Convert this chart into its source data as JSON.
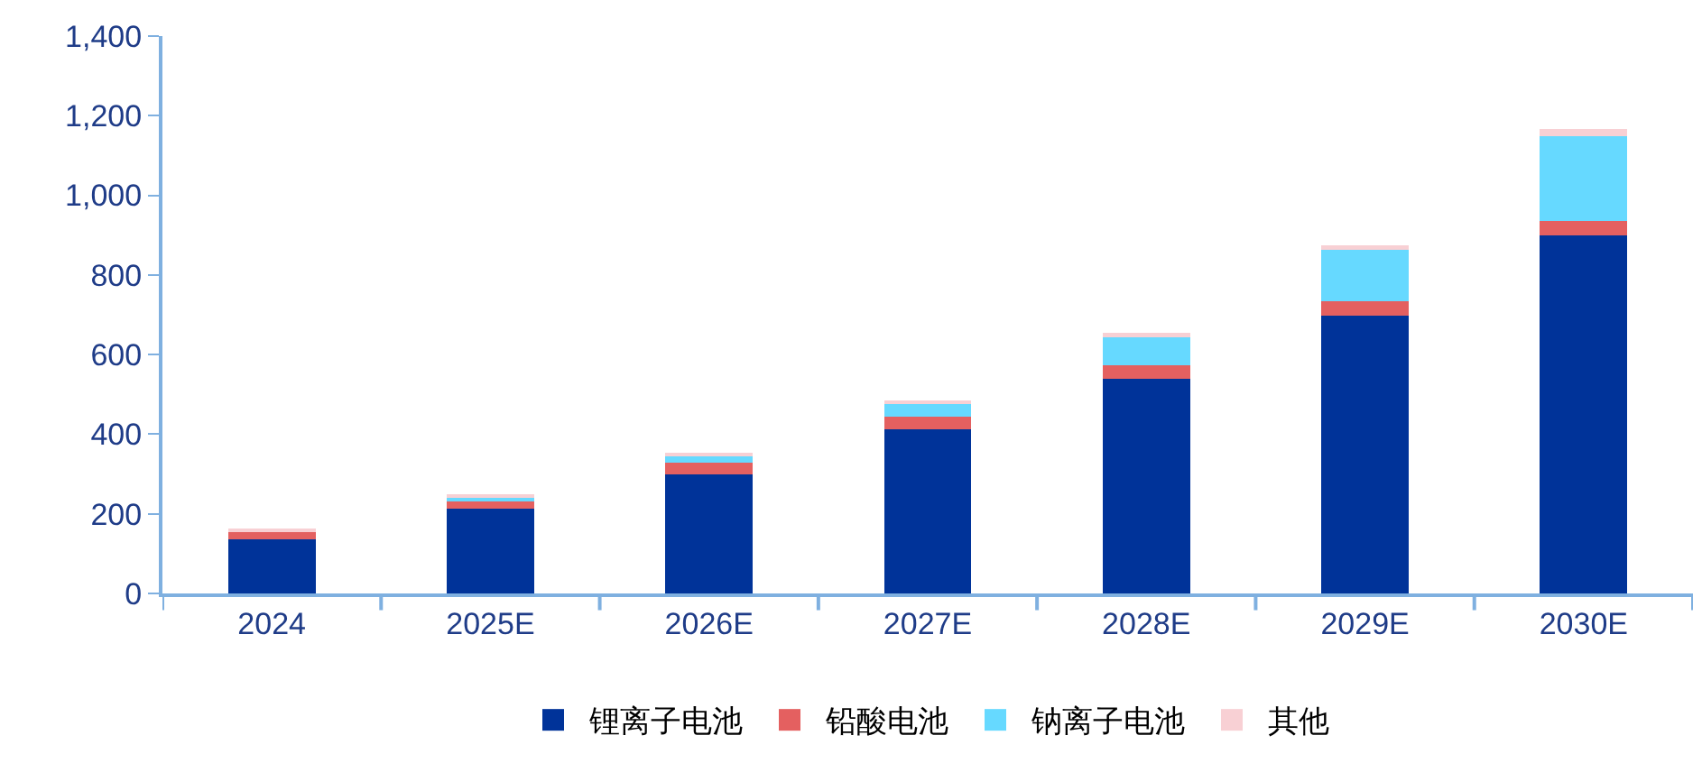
{
  "chart_data": {
    "type": "bar",
    "stacked": true,
    "categories": [
      "2024",
      "2025E",
      "2026E",
      "2027E",
      "2028E",
      "2029E",
      "2030E"
    ],
    "series": [
      {
        "name": "锂离子电池",
        "color": "#003399",
        "values": [
          135,
          213,
          300,
          412,
          540,
          697,
          900
        ]
      },
      {
        "name": "铅酸电池",
        "color": "#e46060",
        "values": [
          20,
          22,
          28,
          31,
          34,
          36,
          36
        ]
      },
      {
        "name": "钠离子电池",
        "color": "#66d9ff",
        "values": [
          null,
          8,
          18,
          37,
          72,
          130,
          212
        ]
      },
      {
        "name": "其他",
        "color": "#f8d0d4",
        "values": [
          5,
          2,
          3,
          4,
          8,
          12,
          18
        ]
      }
    ],
    "ylim": [
      0,
      1400
    ],
    "yticks": [
      0,
      {
        "value": 200,
        "label": "200"
      },
      {
        "value": 400,
        "label": "400"
      },
      {
        "value": 600,
        "label": "600"
      },
      {
        "value": 800,
        "label": "800"
      },
      {
        "value": 1000,
        "label": "1,000"
      },
      {
        "value": 1200,
        "label": "1,200"
      },
      {
        "value": 1400,
        "label": "1,400"
      }
    ],
    "legend": "bottom"
  }
}
